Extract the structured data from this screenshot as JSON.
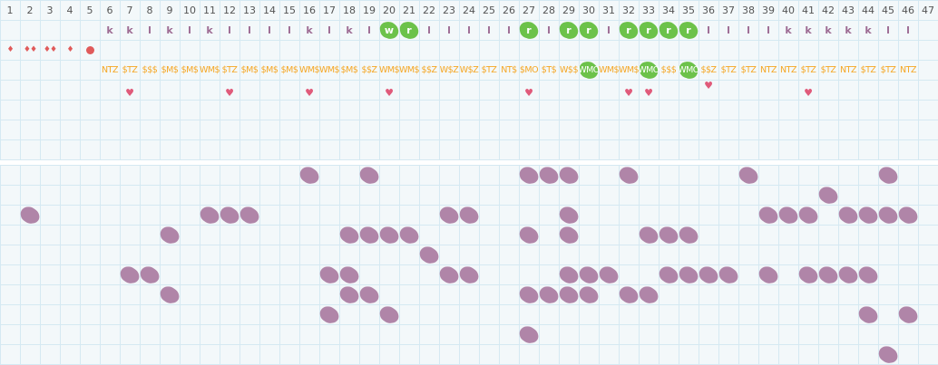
{
  "colors": {
    "grid_bg": "#f3f8fa",
    "grid_line": "#d5e9f2",
    "letter": "#9d6b93",
    "highlight": "#6cc24a",
    "code": "#f5a623",
    "heart": "#e05a7a",
    "drop": "#e05a5a",
    "blob": "#b085a8"
  },
  "days": [
    1,
    2,
    3,
    4,
    5,
    6,
    7,
    8,
    9,
    10,
    11,
    12,
    13,
    14,
    15,
    16,
    17,
    18,
    19,
    20,
    21,
    22,
    23,
    24,
    25,
    26,
    27,
    28,
    29,
    30,
    31,
    32,
    33,
    34,
    35,
    36,
    37,
    38,
    39,
    40,
    41,
    42,
    43,
    44,
    45,
    46,
    47
  ],
  "letters": [
    "",
    "",
    "",
    "",
    "",
    "k",
    "k",
    "l",
    "k",
    "l",
    "k",
    "l",
    "l",
    "l",
    "l",
    "k",
    "l",
    "k",
    "l",
    "w",
    "r",
    "l",
    "l",
    "l",
    "l",
    "l",
    "r",
    "l",
    "r",
    "r",
    "l",
    "r",
    "r",
    "r",
    "r",
    "l",
    "l",
    "l",
    "l",
    "k",
    "k",
    "k",
    "k",
    "k",
    "l",
    "l",
    ""
  ],
  "letters_highlighted_days": [
    20,
    21,
    27,
    29,
    30,
    32,
    33,
    34,
    35
  ],
  "drops": [
    {
      "day": 1,
      "icon": "drop",
      "text": "♦"
    },
    {
      "day": 2,
      "icon": "double-drop",
      "text": "♦♦"
    },
    {
      "day": 3,
      "icon": "double-drop",
      "text": "♦♦"
    },
    {
      "day": 4,
      "icon": "drop",
      "text": "♦"
    },
    {
      "day": 5,
      "icon": "dot"
    }
  ],
  "codes": [
    "",
    "",
    "",
    "",
    "",
    "NTZ",
    "$TZ",
    "$$$",
    "$M$",
    "$M$",
    "WM$",
    "$TZ",
    "$M$",
    "$M$",
    "$M$",
    "WM$",
    "WM$",
    "$M$",
    "$$Z",
    "WM$",
    "WM$",
    "$$Z",
    "W$Z",
    "W$Z",
    "$TZ",
    "NT$",
    "$MO",
    "$T$",
    "W$$",
    "WMO",
    "WM$",
    "WM$",
    "WMO",
    "$$$",
    "WMO",
    "$$Z",
    "$TZ",
    "$TZ",
    "NTZ",
    "NTZ",
    "$TZ",
    "$TZ",
    "NTZ",
    "$TZ",
    "$TZ",
    "NTZ",
    ""
  ],
  "codes_highlighted_days": [
    30,
    33,
    35
  ],
  "heart_days": [
    7,
    12,
    16,
    20,
    27,
    32,
    33,
    36,
    41
  ],
  "blob_rows": [
    [
      16,
      19,
      27,
      28,
      29,
      32,
      38,
      45
    ],
    [
      42
    ],
    [
      2,
      11,
      12,
      13,
      23,
      24,
      29,
      39,
      40,
      41,
      43,
      44,
      45,
      46
    ],
    [
      9,
      18,
      19,
      20,
      21,
      27,
      29,
      33,
      34,
      35
    ],
    [
      22
    ],
    [
      7,
      8,
      17,
      18,
      23,
      24,
      29,
      30,
      31,
      34,
      35,
      36,
      37,
      39,
      41,
      42,
      43,
      44
    ],
    [
      9,
      18,
      19,
      27,
      28,
      29,
      30,
      32,
      33
    ],
    [
      17,
      20,
      44,
      46
    ],
    [
      27
    ],
    [
      45
    ]
  ]
}
